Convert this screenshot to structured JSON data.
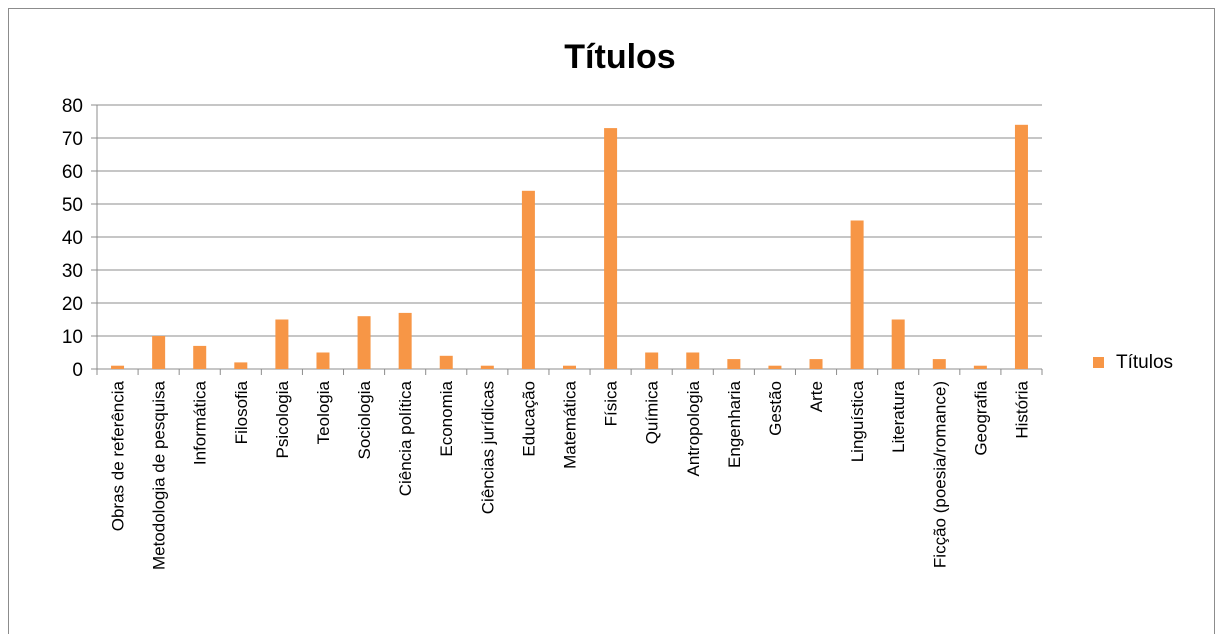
{
  "chart_data": {
    "type": "bar",
    "title": "Títulos",
    "xlabel": "",
    "ylabel": "",
    "ylim": [
      0,
      80
    ],
    "yticks": [
      0,
      10,
      20,
      30,
      40,
      50,
      60,
      70,
      80
    ],
    "grid": true,
    "legend_position": "right",
    "colors": {
      "bar": "#F79646",
      "grid": "#8c8c8c",
      "frame": "#8c8c8c"
    },
    "categories": [
      "Obras de referência",
      "Metodologia de pesquisa",
      "Informática",
      "Filosofia",
      "Psicologia",
      "Teologia",
      "Sociologia",
      "Ciência política",
      "Economia",
      "Ciências jurídicas",
      "Educação",
      "Matemática",
      "Física",
      "Química",
      "Antropologia",
      "Engenharia",
      "Gestão",
      "Arte",
      "Linguística",
      "Literatura",
      "Ficção (poesia/romance)",
      "Geografia",
      "História"
    ],
    "series": [
      {
        "name": "Títulos",
        "values": [
          1,
          10,
          7,
          2,
          15,
          5,
          16,
          17,
          4,
          1,
          54,
          1,
          73,
          5,
          5,
          3,
          1,
          3,
          45,
          15,
          3,
          1,
          74
        ]
      }
    ]
  }
}
